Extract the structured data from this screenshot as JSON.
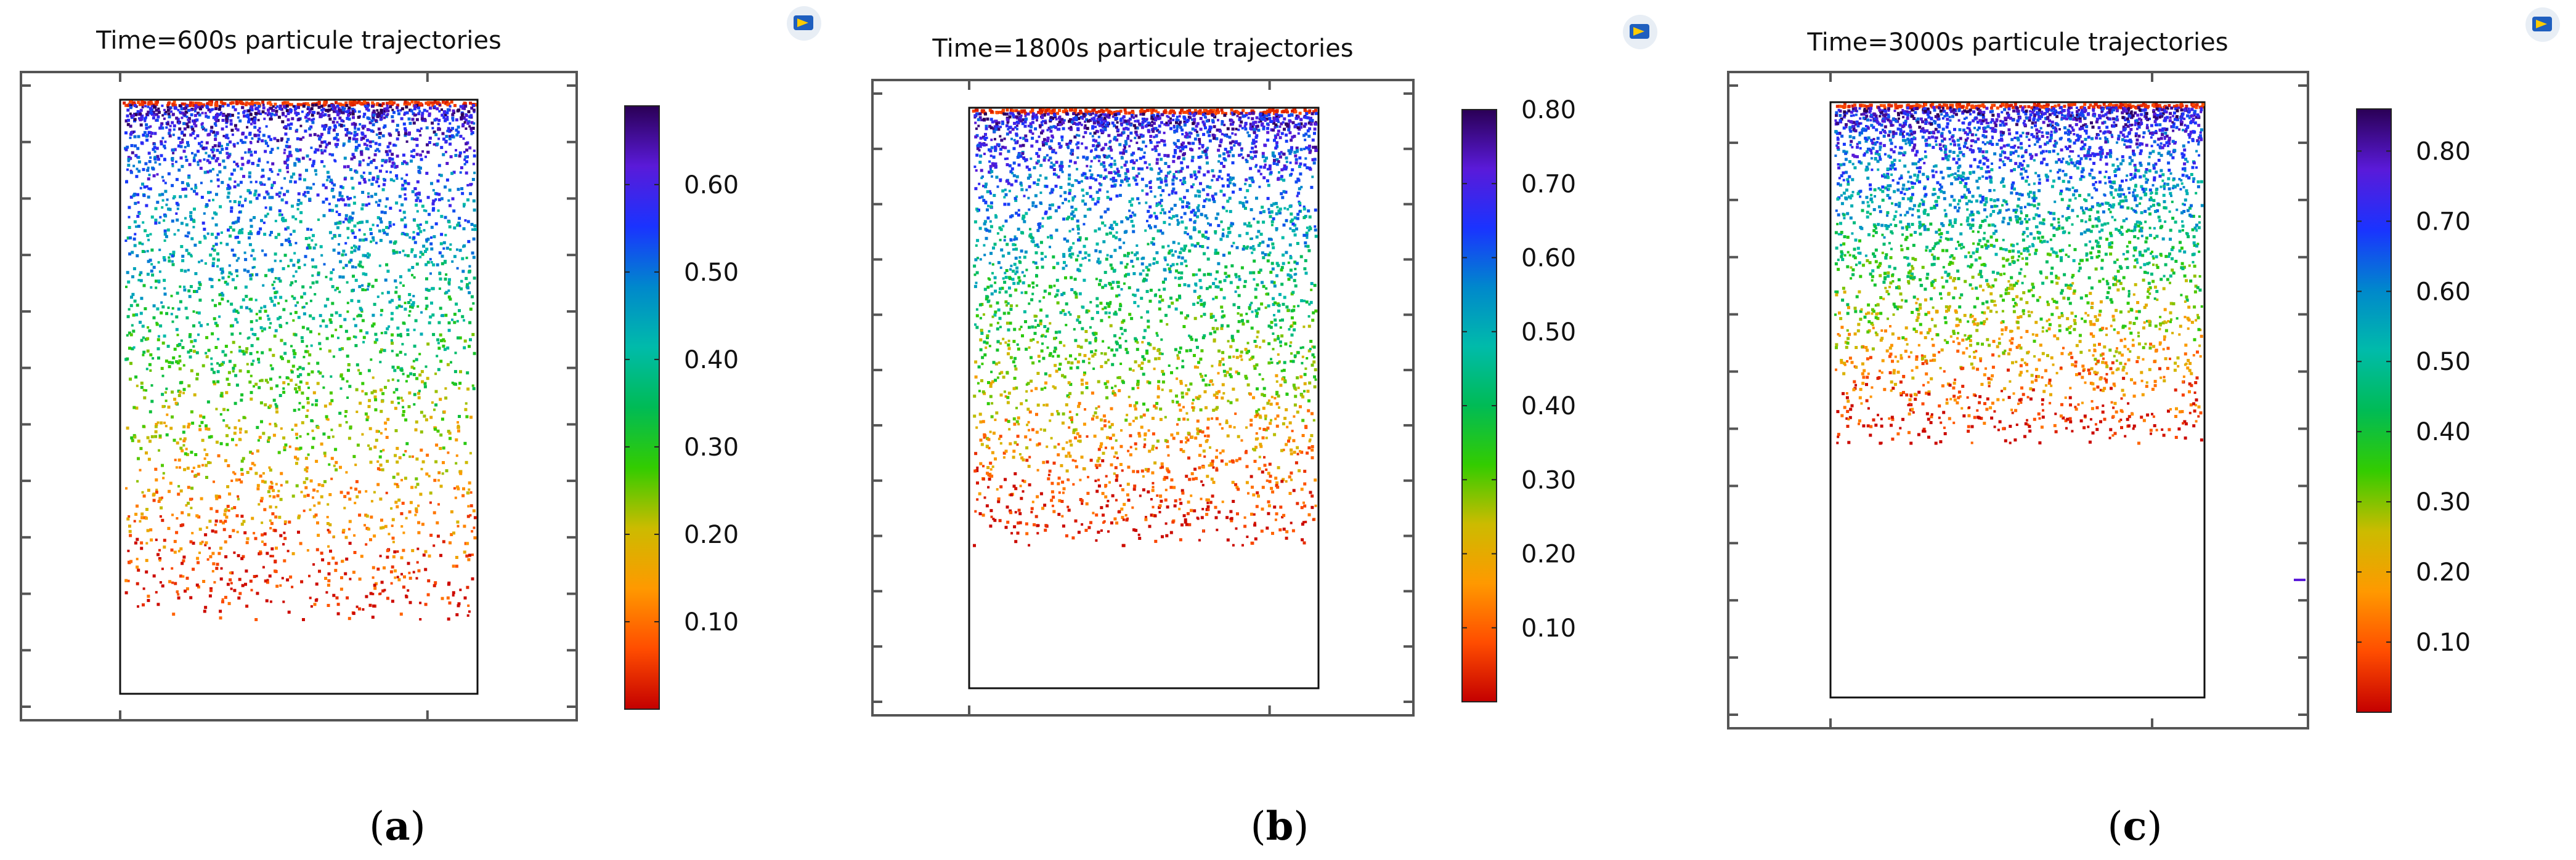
{
  "colormap": [
    "#c40000",
    "#ff4d00",
    "#ff9900",
    "#ccbb00",
    "#33cc00",
    "#00bb55",
    "#00bbaa",
    "#0088cc",
    "#1a33ff",
    "#5a1ad9",
    "#2a0055"
  ],
  "panels": [
    {
      "id": "a",
      "label_open": "(",
      "label_letter": "a",
      "label_close": ")",
      "title": "Time=600s  particule trajectories",
      "chart_data": {
        "type": "scatter",
        "title": "Time=600s  particule trajectories",
        "color_label": "",
        "colorbar_range": [
          0,
          0.69
        ],
        "colorbar_ticks": [
          0.1,
          0.2,
          0.3,
          0.4,
          0.5,
          0.6
        ],
        "colorbar_tick_labels": [
          "0.10",
          "0.20",
          "0.30",
          "0.40",
          "0.50",
          "0.60"
        ],
        "particle_front_depth": 0.86,
        "n_particles": 3600,
        "seed": 600
      }
    },
    {
      "id": "b",
      "label_open": "(",
      "label_letter": "b",
      "label_close": ")",
      "title": "Time=1800s  particule trajectories",
      "chart_data": {
        "type": "scatter",
        "title": "Time=1800s  particule trajectories",
        "color_label": "",
        "colorbar_range": [
          0,
          0.8
        ],
        "colorbar_ticks": [
          0.1,
          0.2,
          0.3,
          0.4,
          0.5,
          0.6,
          0.7,
          0.8
        ],
        "colorbar_tick_labels": [
          "0.10",
          "0.20",
          "0.30",
          "0.40",
          "0.50",
          "0.60",
          "0.70",
          "0.80"
        ],
        "particle_front_depth": 0.74,
        "n_particles": 3600,
        "seed": 1800
      }
    },
    {
      "id": "c",
      "label_open": "(",
      "label_letter": "c",
      "label_close": ")",
      "title": "Time=3000s  particule trajectories",
      "chart_data": {
        "type": "scatter",
        "title": "Time=3000s  particule trajectories",
        "color_label": "",
        "colorbar_range": [
          0,
          0.86
        ],
        "colorbar_ticks": [
          0.1,
          0.2,
          0.3,
          0.4,
          0.5,
          0.6,
          0.7,
          0.8
        ],
        "colorbar_tick_labels": [
          "0.10",
          "0.20",
          "0.30",
          "0.40",
          "0.50",
          "0.60",
          "0.70",
          "0.80"
        ],
        "particle_front_depth": 0.56,
        "n_particles": 3600,
        "seed": 3000
      }
    }
  ]
}
